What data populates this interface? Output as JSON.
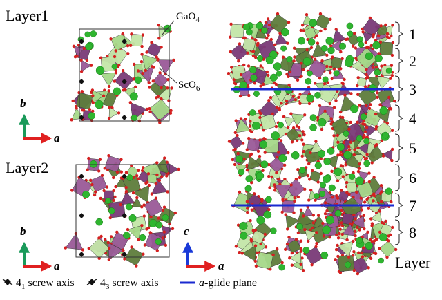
{
  "panels": [
    {
      "label": "Layer1",
      "annotations": [
        {
          "base": "GaO",
          "sub": "4"
        },
        {
          "base": "ScO",
          "sub": "6"
        }
      ],
      "axes": [
        "b",
        "a"
      ]
    },
    {
      "label": "Layer2",
      "axes": [
        "b",
        "a"
      ]
    }
  ],
  "side_view": {
    "axes": [
      "c",
      "a"
    ],
    "layers": [
      "1",
      "2",
      "3",
      "4",
      "5",
      "6",
      "7",
      "8"
    ],
    "layers_title": "Layer"
  },
  "legend": [
    {
      "base": "4",
      "sub": "1",
      "text": "screw axis"
    },
    {
      "base": "4",
      "sub": "3",
      "text": "screw axis"
    },
    {
      "italic": "a",
      "text": "-glide plane"
    }
  ]
}
